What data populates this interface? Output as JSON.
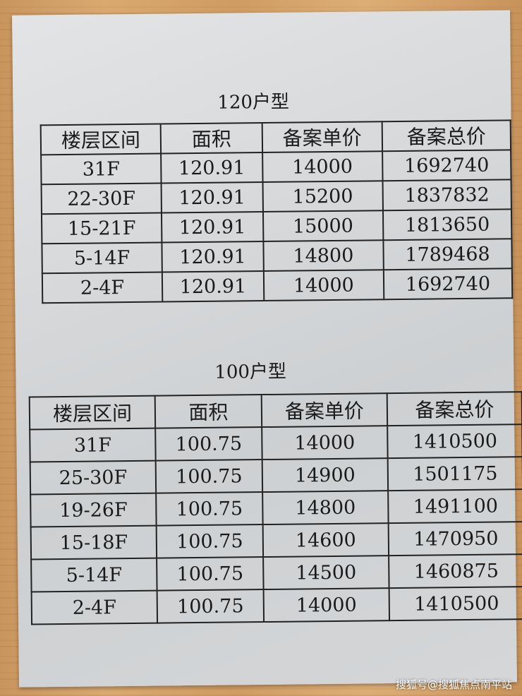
{
  "tables": [
    {
      "title": "120户型",
      "headers": [
        "楼层区间",
        "面积",
        "备案单价",
        "备案总价"
      ],
      "rows": [
        [
          "31F",
          "120.91",
          "14000",
          "1692740"
        ],
        [
          "22-30F",
          "120.91",
          "15200",
          "1837832"
        ],
        [
          "15-21F",
          "120.91",
          "15000",
          "1813650"
        ],
        [
          "5-14F",
          "120.91",
          "14800",
          "1789468"
        ],
        [
          "2-4F",
          "120.91",
          "14000",
          "1692740"
        ]
      ]
    },
    {
      "title": "100户型",
      "headers": [
        "楼层区间",
        "面积",
        "备案单价",
        "备案总价"
      ],
      "rows": [
        [
          "31F",
          "100.75",
          "14000",
          "1410500"
        ],
        [
          "25-30F",
          "100.75",
          "14900",
          "1501175"
        ],
        [
          "19-26F",
          "100.75",
          "14800",
          "1491100"
        ],
        [
          "15-18F",
          "100.75",
          "14600",
          "1470950"
        ],
        [
          "5-14F",
          "100.75",
          "14500",
          "1460875"
        ],
        [
          "2-4F",
          "100.75",
          "14000",
          "1410500"
        ]
      ]
    }
  ],
  "watermark": "搜狐号@搜狐焦点南平站"
}
